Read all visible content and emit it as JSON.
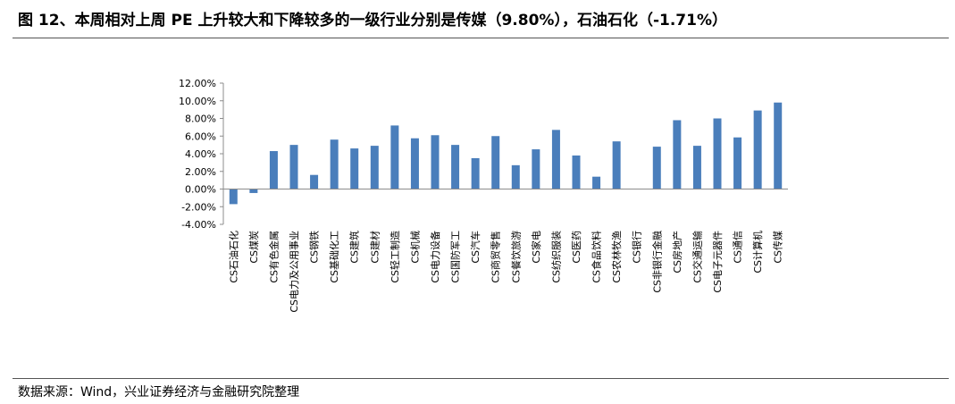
{
  "title": "图 12、本周相对上周 PE 上升较大和下降较多的一级行业分别是传媒（9.80%），石油石化（-1.71%）",
  "source": "数据来源：Wind，兴业证券经济与金融研究院整理",
  "chart_data": {
    "type": "bar",
    "title": "",
    "xlabel": "",
    "ylabel": "",
    "ylim": [
      -4.0,
      12.0
    ],
    "yticks": [
      "12.00%",
      "10.00%",
      "8.00%",
      "6.00%",
      "4.00%",
      "2.00%",
      "0.00%",
      "-2.00%",
      "-4.00%"
    ],
    "bar_color": "#4a7ebb",
    "categories": [
      "CS石油石化",
      "CS煤炭",
      "CS有色金属",
      "CS电力及公用事业",
      "CS钢铁",
      "CS基础化工",
      "CS建筑",
      "CS建材",
      "CS轻工制造",
      "CS机械",
      "CS电力设备",
      "CS国防军工",
      "CS汽车",
      "CS商贸零售",
      "CS餐饮旅游",
      "CS家电",
      "CS纺织服装",
      "CS医药",
      "CS食品饮料",
      "CS农林牧渔",
      "CS银行",
      "CS非银行金融",
      "CS房地产",
      "CS交通运输",
      "CS电子元器件",
      "CS通信",
      "CS计算机",
      "CS传媒"
    ],
    "values": [
      -1.71,
      -0.45,
      4.3,
      5.0,
      1.6,
      5.6,
      4.6,
      4.9,
      7.2,
      5.75,
      6.1,
      5.0,
      3.5,
      6.0,
      2.7,
      4.5,
      6.7,
      3.8,
      1.4,
      5.4,
      0.05,
      4.8,
      7.8,
      4.9,
      8.0,
      5.85,
      8.9,
      9.8
    ]
  }
}
